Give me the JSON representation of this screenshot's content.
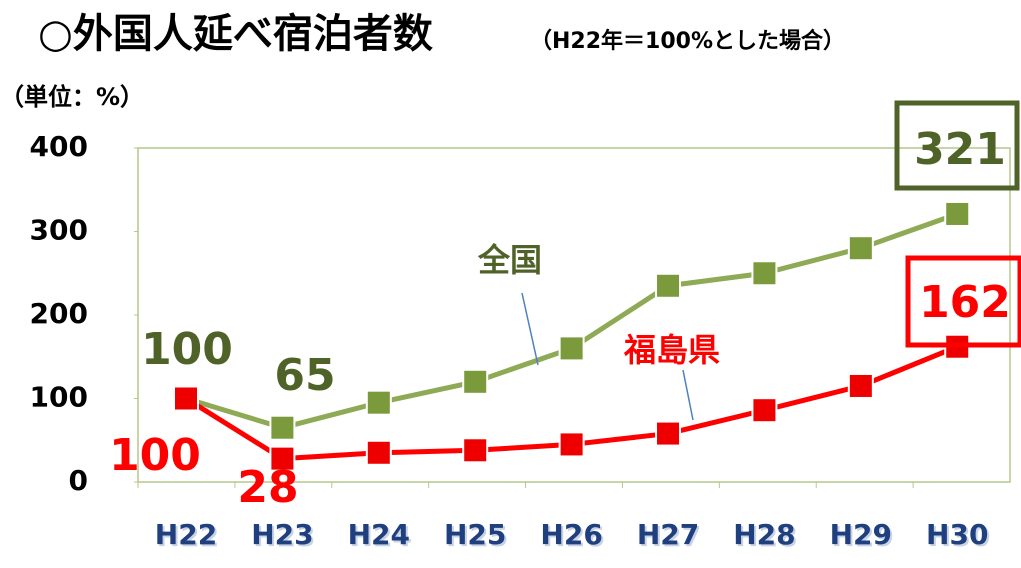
{
  "chart_data": {
    "type": "line",
    "title": "○外国人延べ宿泊者数",
    "subtitle": "（H22年＝100%とした場合）",
    "y_axis_label": "（単位：%）",
    "categories": [
      "H22",
      "H23",
      "H24",
      "H25",
      "H26",
      "H27",
      "H28",
      "H29",
      "H30"
    ],
    "series": [
      {
        "name": "全国",
        "color": "#8faa55",
        "marker_color": "#7a9a3c",
        "label_color": "#4f6228",
        "values": [
          100,
          65,
          95,
          120,
          160,
          235,
          250,
          280,
          321
        ],
        "value_labels": [
          "100",
          "65",
          null,
          null,
          null,
          null,
          null,
          null,
          "321"
        ]
      },
      {
        "name": "福島県",
        "color": "#ff0000",
        "marker_color": "#ee0000",
        "label_color": "#ff0000",
        "values": [
          100,
          28,
          35,
          38,
          45,
          58,
          86,
          115,
          162
        ],
        "value_labels": [
          "100",
          "28",
          null,
          null,
          null,
          null,
          null,
          null,
          "162"
        ]
      }
    ],
    "ylim": [
      0,
      400
    ],
    "yticks": [
      0,
      100,
      200,
      300,
      400
    ]
  }
}
